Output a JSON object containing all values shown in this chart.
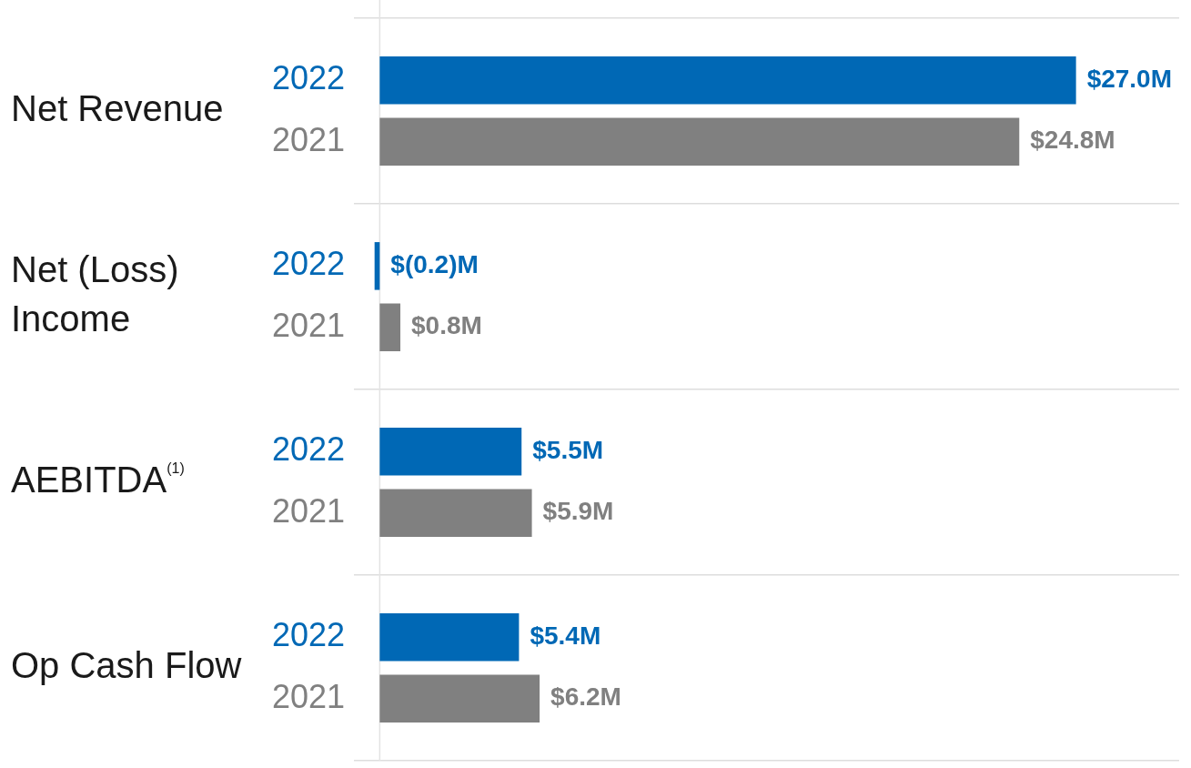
{
  "chart_data": {
    "type": "bar",
    "orientation": "horizontal",
    "categories": [
      "Net Revenue",
      "Net (Loss) Income",
      "AEBITDA$^{(1)}$",
      "Op Cash Flow"
    ],
    "series": [
      {
        "name": "2022",
        "color": "#0068b5",
        "values": [
          27.0,
          -0.2,
          5.5,
          5.4
        ],
        "value_labels": [
          "$27.0M",
          "$(0.2)M",
          "$5.5M",
          "$5.4M"
        ]
      },
      {
        "name": "2021",
        "color": "#808080",
        "values": [
          24.8,
          0.8,
          5.9,
          6.2
        ],
        "value_labels": [
          "$24.8M",
          "$0.8M",
          "$5.9M",
          "$6.2M"
        ]
      }
    ],
    "xlim": [
      -1,
      31
    ],
    "tick_labels": "y",
    "grid": "y",
    "legend": false,
    "ref_lines": [
      {
        "axis": "x",
        "value": 0,
        "color": "#e3e3e3"
      }
    ]
  }
}
